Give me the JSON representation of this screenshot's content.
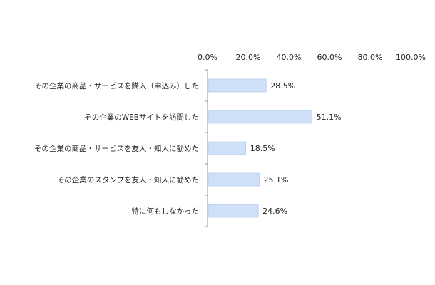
{
  "chart_data": {
    "type": "bar",
    "orientation": "horizontal",
    "categories": [
      "その企業の商品・サービスを購入（申込み）した",
      "その企業のWEBサイトを訪問した",
      "その企業の商品・サービスを友人・知人に勧めた",
      "その企業のスタンプを友人・知人に勧めた",
      "特に何もしなかった"
    ],
    "values": [
      28.5,
      51.1,
      18.5,
      25.1,
      24.6
    ],
    "value_labels": [
      "28.5%",
      "51.1%",
      "18.5%",
      "25.1%",
      "24.6%"
    ],
    "x_ticks": [
      "0.0%",
      "20.0%",
      "40.0%",
      "60.0%",
      "80.0%",
      "100.0%"
    ],
    "xlim": [
      0,
      100
    ],
    "x_axis_position": "top",
    "grid": false,
    "legend": "none",
    "title": "",
    "xlabel": "",
    "ylabel": "",
    "colors": {
      "bar_fill": "#cfe0f8",
      "bar_stroke": "#a9c4ec",
      "axis": "#999999",
      "text": "#222222"
    }
  }
}
